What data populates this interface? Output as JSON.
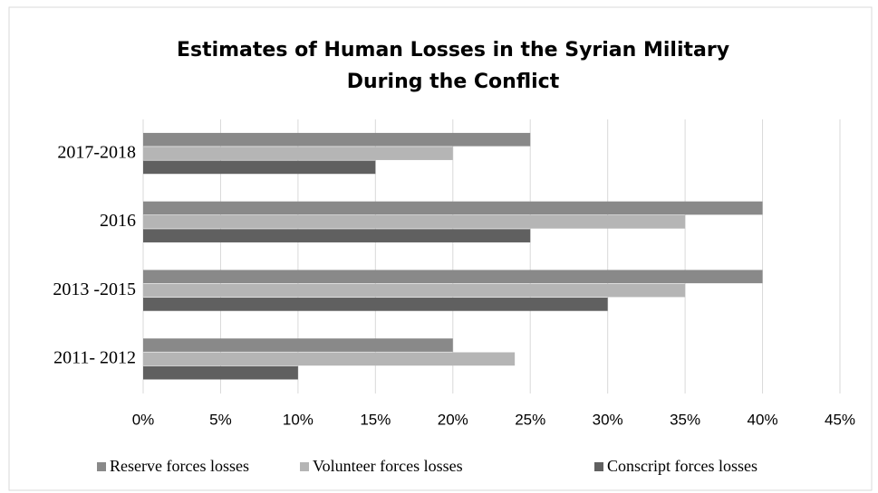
{
  "chart_data": {
    "type": "bar",
    "orientation": "horizontal",
    "title": "Estimates of Human Losses in the Syrian Military During the Conflict",
    "categories": [
      "2011- 2012",
      "2013 -2015",
      "2016",
      "2017-2018"
    ],
    "series": [
      {
        "name": "Reserve forces losses",
        "color": "#898989",
        "values": [
          20,
          40,
          40,
          25
        ]
      },
      {
        "name": "Volunteer forces losses",
        "color": "#b5b5b5",
        "values": [
          24,
          35,
          35,
          20
        ]
      },
      {
        "name": "Conscript forces losses",
        "color": "#606060",
        "values": [
          10,
          30,
          25,
          15
        ]
      }
    ],
    "xlim": [
      0,
      45
    ],
    "xticks": [
      {
        "value": 0,
        "label": "0%"
      },
      {
        "value": 5,
        "label": "5%"
      },
      {
        "value": 10,
        "label": "10%"
      },
      {
        "value": 15,
        "label": "15%"
      },
      {
        "value": 20,
        "label": "20%"
      },
      {
        "value": 25,
        "label": "25%"
      },
      {
        "value": 30,
        "label": "30%"
      },
      {
        "value": 35,
        "label": "35%"
      },
      {
        "value": 40,
        "label": "40%"
      },
      {
        "value": 45,
        "label": "45%"
      }
    ],
    "grid": true,
    "legend": "bottom"
  }
}
